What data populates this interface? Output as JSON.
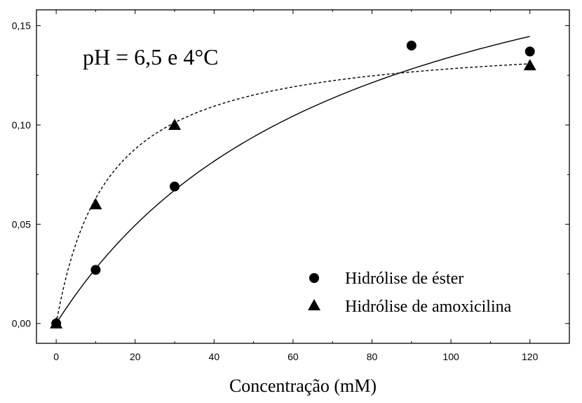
{
  "chart_data": {
    "type": "scatter",
    "xlabel": "Concentração (mM)",
    "ylabel": "",
    "annotation": "pH = 6,5 e 4°C",
    "xlim": [
      -5,
      130
    ],
    "ylim": [
      -0.01,
      0.158
    ],
    "xticks": [
      0,
      20,
      40,
      60,
      80,
      100,
      120
    ],
    "xtick_labels": [
      "0",
      "20",
      "40",
      "60",
      "80",
      "100",
      "120"
    ],
    "yticks": [
      0.0,
      0.05,
      0.1,
      0.15
    ],
    "ytick_labels": [
      "0,00",
      "0,05",
      "0,10",
      "0,15"
    ],
    "legend_position": "bottom-right",
    "series": [
      {
        "name": "Hidrólise de éster",
        "marker": "circle",
        "x": [
          0,
          10,
          30,
          90,
          120
        ],
        "y": [
          0.0,
          0.027,
          0.069,
          0.14,
          0.137
        ],
        "fit": {
          "style": "solid",
          "vmax": 0.235,
          "km": 75
        }
      },
      {
        "name": "Hidrólise de amoxicilina",
        "marker": "triangle",
        "x": [
          0,
          10,
          30,
          120
        ],
        "y": [
          0.0,
          0.06,
          0.1,
          0.13
        ],
        "fit": {
          "style": "dashed",
          "vmax": 0.145,
          "km": 13
        }
      }
    ]
  }
}
